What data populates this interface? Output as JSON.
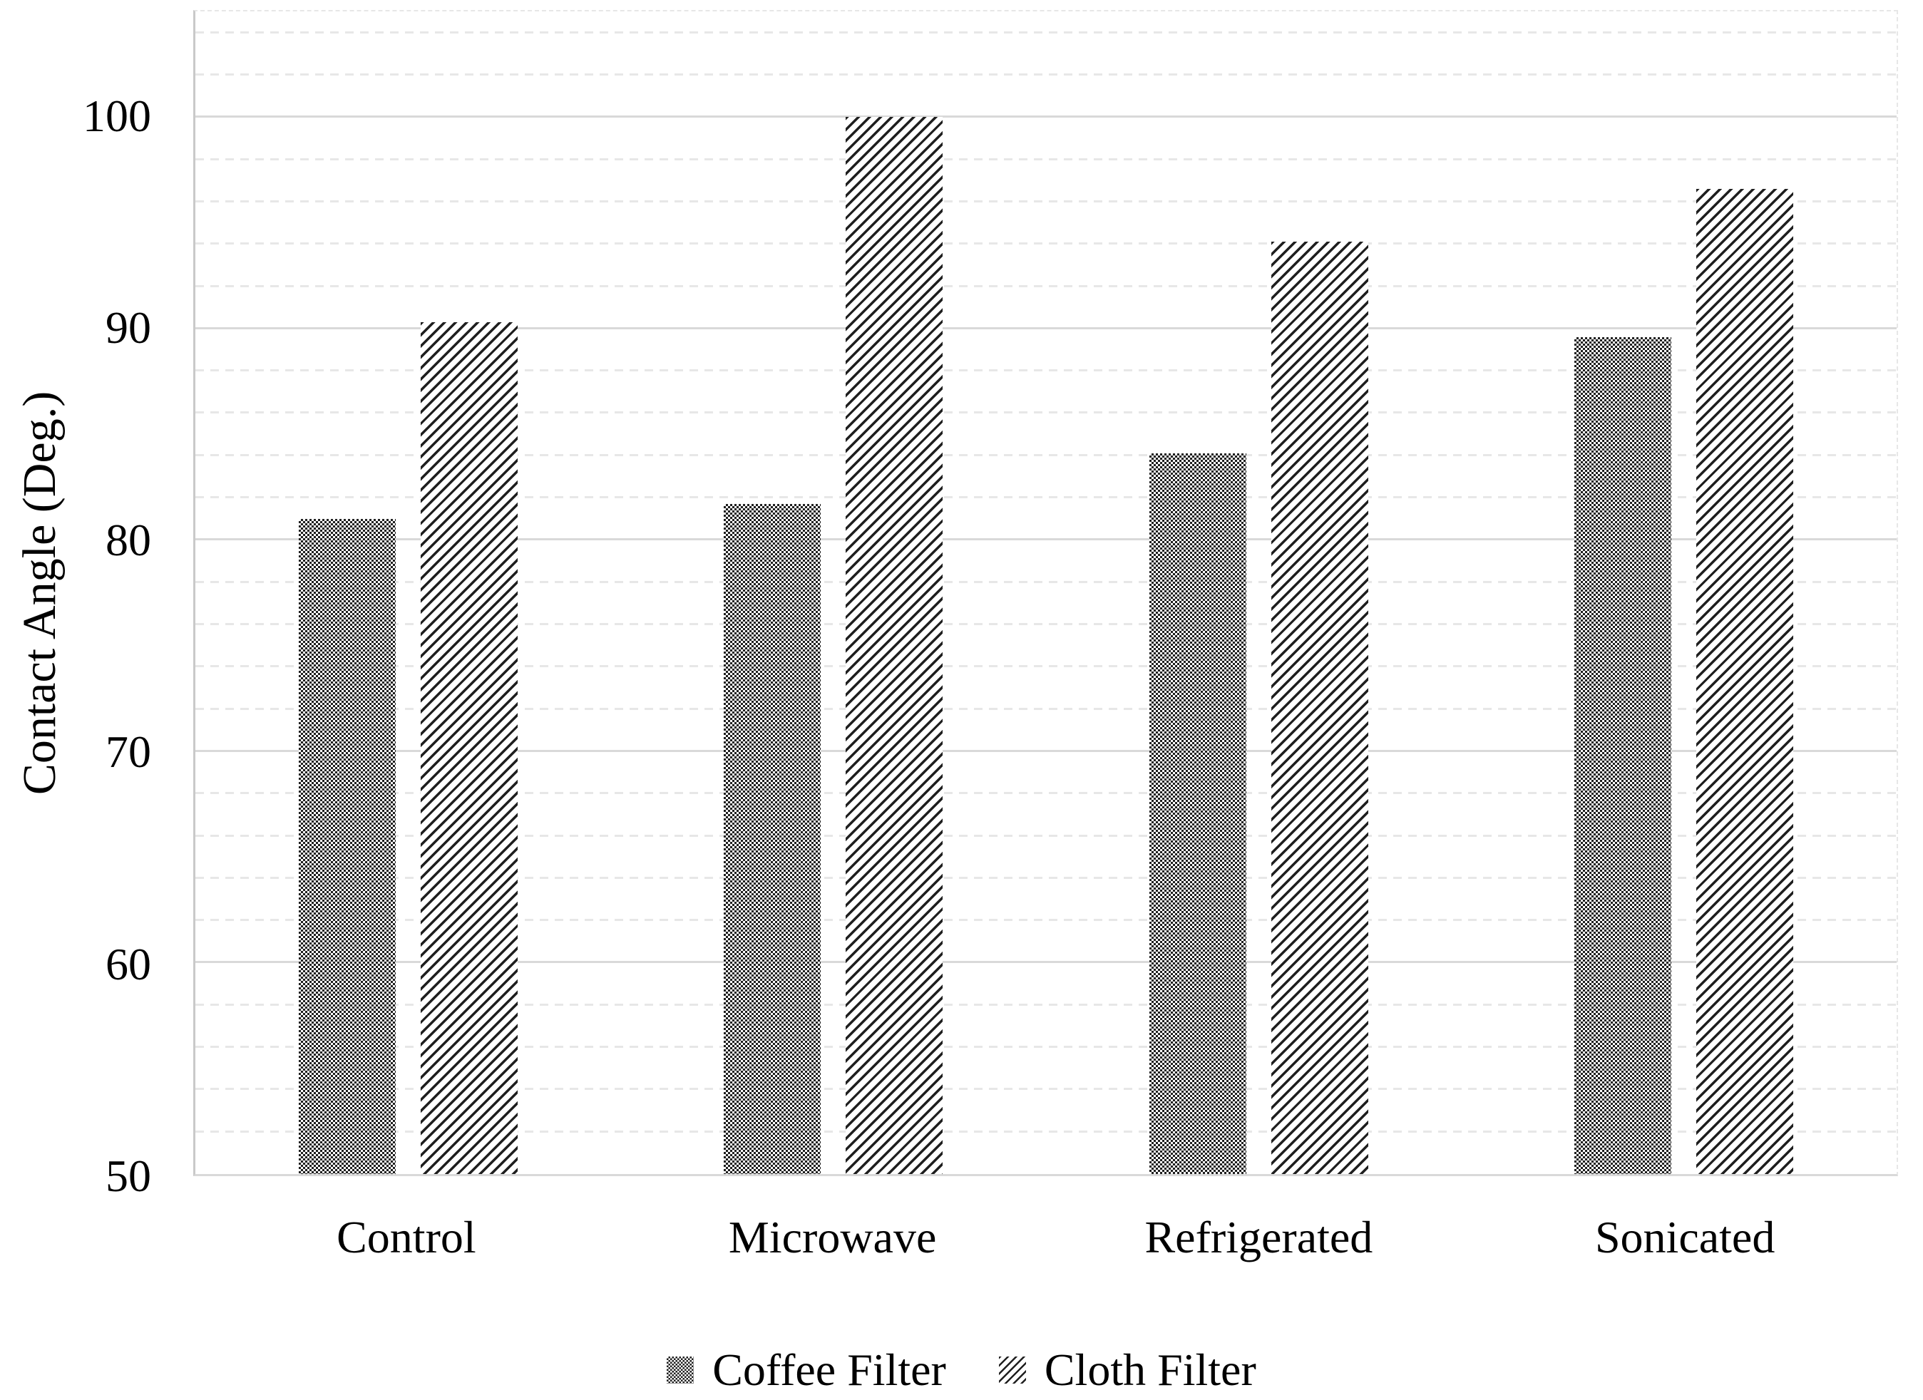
{
  "figure": {
    "background": "#ffffff"
  },
  "chart_data": {
    "type": "bar",
    "title": "",
    "xlabel": "",
    "ylabel": "Contact Angle (Deg.)",
    "categories": [
      "Control",
      "Microwave",
      "Refrigerated",
      "Sonicated"
    ],
    "series": [
      {
        "name": "Coffee Filter",
        "pattern": "checkerboard",
        "values": [
          81.0,
          81.7,
          84.1,
          89.6
        ]
      },
      {
        "name": "Cloth Filter",
        "pattern": "diagonal-hatch",
        "values": [
          90.3,
          100.0,
          94.1,
          96.6
        ]
      }
    ],
    "ylim": [
      50,
      105
    ],
    "yticks": [
      50,
      60,
      70,
      80,
      90,
      100
    ],
    "major_gridline_step": 10,
    "minor_gridline_step": 2,
    "grid": "on",
    "legend_position": "bottom",
    "colors": {
      "pattern_ink": "#1f1f1f",
      "pattern_background": "#ffffff",
      "major_gridline": "#d9d9d9",
      "minor_gridline": "#e7e7e7",
      "axis_line": "#c9c9c9",
      "text": "#000000"
    }
  }
}
